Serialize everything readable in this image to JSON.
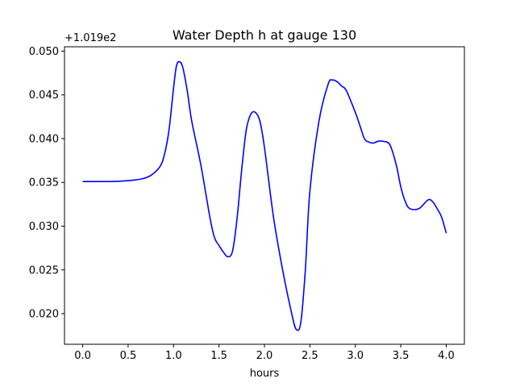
{
  "chart_data": {
    "type": "line",
    "title": "Water Depth h at gauge 130",
    "xlabel": "hours",
    "ylabel": "",
    "y_offset_label": "+1.019e2",
    "xlim": [
      -0.2,
      4.2
    ],
    "ylim": [
      0.0165,
      0.0505
    ],
    "x_ticks": [
      0.0,
      0.5,
      1.0,
      1.5,
      2.0,
      2.5,
      3.0,
      3.5,
      4.0
    ],
    "x_tick_labels": [
      "0.0",
      "0.5",
      "1.0",
      "1.5",
      "2.0",
      "2.5",
      "3.0",
      "3.5",
      "4.0"
    ],
    "y_ticks": [
      0.02,
      0.025,
      0.03,
      0.035,
      0.04,
      0.045,
      0.05
    ],
    "y_tick_labels": [
      "0.020",
      "0.025",
      "0.030",
      "0.035",
      "0.040",
      "0.045",
      "0.050"
    ],
    "grid": false,
    "series": [
      {
        "color": "#0000ff",
        "x": [
          0.0,
          0.3,
          0.5,
          0.65,
          0.75,
          0.85,
          0.9,
          0.95,
          1.0,
          1.03,
          1.06,
          1.1,
          1.15,
          1.2,
          1.3,
          1.4,
          1.45,
          1.5,
          1.55,
          1.6,
          1.65,
          1.7,
          1.75,
          1.8,
          1.85,
          1.9,
          1.95,
          2.0,
          2.1,
          2.2,
          2.3,
          2.35,
          2.4,
          2.45,
          2.5,
          2.6,
          2.7,
          2.75,
          2.8,
          2.85,
          2.9,
          3.0,
          3.05,
          3.1,
          3.15,
          3.2,
          3.25,
          3.3,
          3.38,
          3.45,
          3.5,
          3.55,
          3.6,
          3.7,
          3.8,
          3.85,
          3.9,
          3.95,
          4.0
        ],
        "y": [
          0.0351,
          0.0351,
          0.0352,
          0.0354,
          0.0358,
          0.0368,
          0.0382,
          0.041,
          0.0458,
          0.0482,
          0.0488,
          0.0482,
          0.0455,
          0.042,
          0.037,
          0.031,
          0.0287,
          0.0278,
          0.027,
          0.0265,
          0.0272,
          0.031,
          0.0365,
          0.041,
          0.0428,
          0.043,
          0.042,
          0.039,
          0.031,
          0.025,
          0.02,
          0.0182,
          0.019,
          0.025,
          0.034,
          0.042,
          0.0462,
          0.0467,
          0.0465,
          0.046,
          0.0455,
          0.043,
          0.0415,
          0.04,
          0.0396,
          0.0395,
          0.0397,
          0.0397,
          0.0393,
          0.037,
          0.0345,
          0.0328,
          0.032,
          0.032,
          0.033,
          0.0328,
          0.032,
          0.031,
          0.0292
        ]
      }
    ]
  }
}
